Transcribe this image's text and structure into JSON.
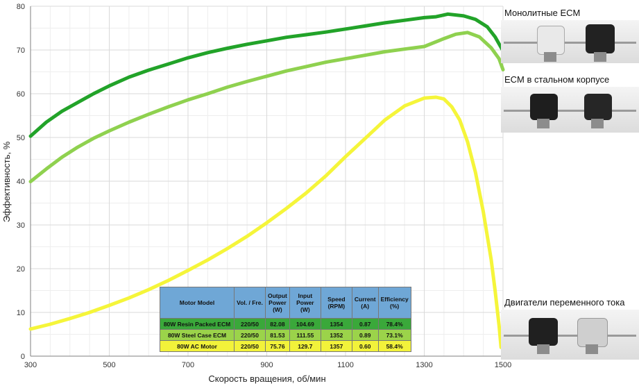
{
  "chart_data": {
    "type": "line",
    "xlabel": "Скорость вращения, об/мин",
    "ylabel": "Эффективность, %",
    "xlim": [
      300,
      1500
    ],
    "ylim": [
      0,
      80
    ],
    "xticks": [
      300,
      500,
      700,
      900,
      1100,
      1300,
      1500
    ],
    "yticks": [
      0,
      10,
      20,
      30,
      40,
      50,
      60,
      70,
      80
    ],
    "grid": true,
    "series": [
      {
        "color": "#22a329",
        "x": [
          300,
          340,
          380,
          420,
          460,
          500,
          550,
          600,
          650,
          700,
          750,
          800,
          850,
          900,
          950,
          1000,
          1050,
          1100,
          1150,
          1200,
          1250,
          1300,
          1330,
          1360,
          1400,
          1430,
          1460,
          1480,
          1500
        ],
        "y": [
          50.3,
          53.5,
          56.0,
          58.0,
          60.0,
          61.8,
          63.8,
          65.4,
          66.8,
          68.2,
          69.4,
          70.4,
          71.3,
          72.1,
          72.9,
          73.5,
          74.1,
          74.8,
          75.5,
          76.2,
          76.8,
          77.4,
          77.6,
          78.2,
          77.8,
          77.0,
          75.3,
          73.0,
          69.8
        ]
      },
      {
        "color": "#8fd14f",
        "x": [
          300,
          340,
          380,
          420,
          460,
          500,
          550,
          600,
          650,
          700,
          750,
          800,
          850,
          900,
          950,
          1000,
          1050,
          1100,
          1150,
          1200,
          1250,
          1300,
          1350,
          1380,
          1410,
          1440,
          1470,
          1490,
          1500
        ],
        "y": [
          39.9,
          42.8,
          45.5,
          47.8,
          49.8,
          51.5,
          53.5,
          55.3,
          57.0,
          58.6,
          60.0,
          61.5,
          62.8,
          64.0,
          65.2,
          66.2,
          67.2,
          68.0,
          68.8,
          69.6,
          70.2,
          70.8,
          72.6,
          73.6,
          74.0,
          73.0,
          70.5,
          68.0,
          65.5
        ]
      },
      {
        "color": "#f5f53a",
        "x": [
          300,
          350,
          400,
          450,
          500,
          550,
          600,
          650,
          700,
          750,
          800,
          850,
          900,
          950,
          1000,
          1050,
          1100,
          1150,
          1200,
          1250,
          1300,
          1330,
          1350,
          1370,
          1390,
          1410,
          1430,
          1450,
          1470,
          1480,
          1490,
          1495
        ],
        "y": [
          6.2,
          7.3,
          8.6,
          10.0,
          11.6,
          13.3,
          15.2,
          17.3,
          19.6,
          22.0,
          24.6,
          27.4,
          30.5,
          33.8,
          37.3,
          41.2,
          45.6,
          49.8,
          54.0,
          57.2,
          59.0,
          59.2,
          58.8,
          57.0,
          54.0,
          49.0,
          42.0,
          33.0,
          22.0,
          15.0,
          7.0,
          2.0
        ]
      }
    ]
  },
  "legend": {
    "resin": "Монолитные ECM",
    "steel": "ECM в стальном корпусе",
    "ac": "Двигатели переменного тока"
  },
  "table": {
    "headers": [
      "Motor Model",
      "Vol. / Fre.",
      "Output Power (W)",
      "Input Power (W)",
      "Speed (RPM)",
      "Current (A)",
      "Efficiency (%)"
    ],
    "rows": [
      [
        "80W Resin Packed ECM",
        "220/50",
        "82.08",
        "104.69",
        "1354",
        "0.87",
        "78.4%"
      ],
      [
        "80W Steel Case ECM",
        "220/50",
        "81.53",
        "111.55",
        "1352",
        "0.89",
        "73.1%"
      ],
      [
        "80W AC Motor",
        "220/50",
        "75.76",
        "129.7",
        "1357",
        "0.60",
        "58.4%"
      ]
    ]
  }
}
